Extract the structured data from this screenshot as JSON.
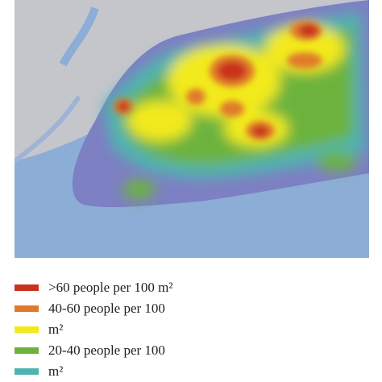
{
  "legend": {
    "items": [
      {
        "label": ">60 people per 100 m²",
        "color": "#c8321e"
      },
      {
        "label": "40-60 people per 100",
        "color": "#e07a2a"
      },
      {
        "label": "m²",
        "color": "#f2ea1c"
      },
      {
        "label": "20-40 people per 100",
        "color": "#6cb33c"
      },
      {
        "label": "m²",
        "color": "#4fb3b0"
      }
    ]
  }
}
